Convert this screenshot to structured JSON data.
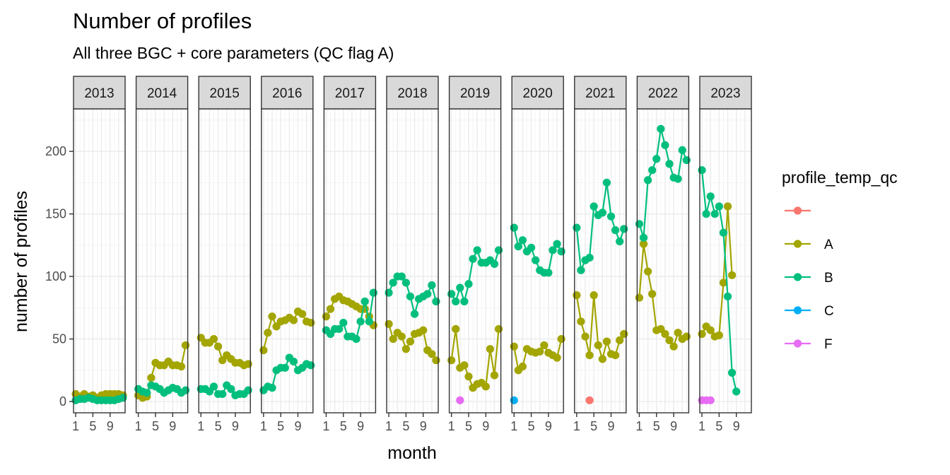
{
  "chart_data": {
    "type": "line",
    "title": "Number of profiles",
    "subtitle": "All three BGC + core parameters (QC flag A)",
    "xlabel": "month",
    "ylabel": "number of profiles",
    "facets": [
      "2013",
      "2014",
      "2015",
      "2016",
      "2017",
      "2018",
      "2019",
      "2020",
      "2021",
      "2022",
      "2023"
    ],
    "x_ticks": [
      1,
      5,
      9
    ],
    "xlim": [
      0.5,
      12.5
    ],
    "y_ticks": [
      0,
      50,
      100,
      150,
      200
    ],
    "ylim": [
      -9,
      234
    ],
    "legend": {
      "title": "profile_temp_qc",
      "position": "right",
      "entries": [
        {
          "label": "",
          "color": "#F8766D"
        },
        {
          "label": "A",
          "color": "#A3A500"
        },
        {
          "label": "B",
          "color": "#00BF7D"
        },
        {
          "label": "C",
          "color": "#00B0F6"
        },
        {
          "label": "F",
          "color": "#E76BF3"
        }
      ]
    },
    "series": [
      {
        "name": "",
        "color": "#F8766D",
        "points": {
          "2021": [
            [
              4,
              1
            ]
          ]
        }
      },
      {
        "name": "A",
        "color": "#A3A500",
        "points": {
          "2013": [
            [
              1,
              6
            ],
            [
              2,
              4
            ],
            [
              3,
              6
            ],
            [
              4,
              4
            ],
            [
              5,
              5
            ],
            [
              6,
              3
            ],
            [
              7,
              5
            ],
            [
              8,
              6
            ],
            [
              9,
              6
            ],
            [
              10,
              6
            ],
            [
              11,
              6
            ],
            [
              12,
              5
            ]
          ],
          "2014": [
            [
              1,
              5
            ],
            [
              2,
              3
            ],
            [
              3,
              4
            ],
            [
              4,
              19
            ],
            [
              5,
              31
            ],
            [
              6,
              29
            ],
            [
              7,
              29
            ],
            [
              8,
              32
            ],
            [
              9,
              29
            ],
            [
              10,
              29
            ],
            [
              11,
              28
            ],
            [
              12,
              45
            ]
          ],
          "2015": [
            [
              1,
              51
            ],
            [
              2,
              47
            ],
            [
              3,
              47
            ],
            [
              4,
              50
            ],
            [
              5,
              44
            ],
            [
              6,
              33
            ],
            [
              7,
              37
            ],
            [
              8,
              34
            ],
            [
              9,
              31
            ],
            [
              10,
              31
            ],
            [
              11,
              29
            ],
            [
              12,
              30
            ]
          ],
          "2016": [
            [
              1,
              41
            ],
            [
              2,
              55
            ],
            [
              3,
              68
            ],
            [
              4,
              60
            ],
            [
              5,
              64
            ],
            [
              6,
              65
            ],
            [
              7,
              67
            ],
            [
              8,
              65
            ],
            [
              9,
              72
            ],
            [
              10,
              70
            ],
            [
              11,
              64
            ],
            [
              12,
              63
            ]
          ],
          "2017": [
            [
              1,
              68
            ],
            [
              2,
              74
            ],
            [
              3,
              82
            ],
            [
              4,
              84
            ],
            [
              5,
              81
            ],
            [
              6,
              80
            ],
            [
              7,
              78
            ],
            [
              8,
              76
            ],
            [
              9,
              74
            ],
            [
              10,
              74
            ],
            [
              11,
              68
            ],
            [
              12,
              61
            ]
          ],
          "2018": [
            [
              1,
              62
            ],
            [
              2,
              50
            ],
            [
              3,
              55
            ],
            [
              4,
              52
            ],
            [
              5,
              42
            ],
            [
              6,
              48
            ],
            [
              7,
              54
            ],
            [
              8,
              55
            ],
            [
              9,
              57
            ],
            [
              10,
              41
            ],
            [
              11,
              38
            ],
            [
              12,
              33
            ]
          ],
          "2019": [
            [
              1,
              33
            ],
            [
              2,
              58
            ],
            [
              3,
              27
            ],
            [
              4,
              29
            ],
            [
              5,
              20
            ],
            [
              6,
              11
            ],
            [
              7,
              14
            ],
            [
              8,
              15
            ],
            [
              9,
              12
            ],
            [
              10,
              42
            ],
            [
              11,
              21
            ],
            [
              12,
              58
            ]
          ],
          "2020": [
            [
              1,
              44
            ],
            [
              2,
              25
            ],
            [
              3,
              28
            ],
            [
              4,
              42
            ],
            [
              5,
              40
            ],
            [
              6,
              39
            ],
            [
              7,
              40
            ],
            [
              8,
              45
            ],
            [
              9,
              39
            ],
            [
              10,
              37
            ],
            [
              11,
              35
            ],
            [
              12,
              50
            ]
          ],
          "2021": [
            [
              1,
              85
            ],
            [
              2,
              64
            ],
            [
              3,
              52
            ],
            [
              4,
              37
            ],
            [
              5,
              85
            ],
            [
              6,
              45
            ],
            [
              7,
              34
            ],
            [
              8,
              48
            ],
            [
              9,
              38
            ],
            [
              10,
              37
            ],
            [
              11,
              49
            ],
            [
              12,
              54
            ]
          ],
          "2022": [
            [
              1,
              83
            ],
            [
              2,
              126
            ],
            [
              3,
              104
            ],
            [
              4,
              86
            ],
            [
              5,
              57
            ],
            [
              6,
              58
            ],
            [
              7,
              54
            ],
            [
              8,
              49
            ],
            [
              9,
              44
            ],
            [
              10,
              55
            ],
            [
              11,
              50
            ],
            [
              12,
              52
            ]
          ],
          "2023": [
            [
              1,
              54
            ],
            [
              2,
              60
            ],
            [
              3,
              57
            ],
            [
              4,
              52
            ],
            [
              5,
              53
            ],
            [
              6,
              95
            ],
            [
              7,
              156
            ],
            [
              8,
              101
            ]
          ]
        }
      },
      {
        "name": "B",
        "color": "#00BF7D",
        "points": {
          "2013": [
            [
              1,
              1
            ],
            [
              2,
              2
            ],
            [
              3,
              2
            ],
            [
              4,
              3
            ],
            [
              5,
              2
            ],
            [
              6,
              1
            ],
            [
              7,
              1
            ],
            [
              8,
              1
            ],
            [
              9,
              1
            ],
            [
              10,
              1
            ],
            [
              11,
              2
            ],
            [
              12,
              3
            ]
          ],
          "2014": [
            [
              1,
              10
            ],
            [
              2,
              8
            ],
            [
              3,
              7
            ],
            [
              4,
              13
            ],
            [
              5,
              12
            ],
            [
              6,
              10
            ],
            [
              7,
              7
            ],
            [
              8,
              9
            ],
            [
              9,
              11
            ],
            [
              10,
              10
            ],
            [
              11,
              7
            ],
            [
              12,
              9
            ]
          ],
          "2015": [
            [
              1,
              10
            ],
            [
              2,
              10
            ],
            [
              3,
              8
            ],
            [
              4,
              12
            ],
            [
              5,
              6
            ],
            [
              6,
              6
            ],
            [
              7,
              13
            ],
            [
              8,
              10
            ],
            [
              9,
              5
            ],
            [
              10,
              6
            ],
            [
              11,
              6
            ],
            [
              12,
              9
            ]
          ],
          "2016": [
            [
              1,
              9
            ],
            [
              2,
              12
            ],
            [
              3,
              11
            ],
            [
              4,
              25
            ],
            [
              5,
              27
            ],
            [
              6,
              27
            ],
            [
              7,
              35
            ],
            [
              8,
              32
            ],
            [
              9,
              25
            ],
            [
              10,
              27
            ],
            [
              11,
              30
            ],
            [
              12,
              29
            ]
          ],
          "2017": [
            [
              1,
              57
            ],
            [
              2,
              54
            ],
            [
              3,
              58
            ],
            [
              4,
              58
            ],
            [
              5,
              63
            ],
            [
              6,
              52
            ],
            [
              7,
              52
            ],
            [
              8,
              50
            ],
            [
              9,
              64
            ],
            [
              10,
              80
            ],
            [
              11,
              64
            ],
            [
              12,
              87
            ]
          ],
          "2018": [
            [
              1,
              87
            ],
            [
              2,
              95
            ],
            [
              3,
              100
            ],
            [
              4,
              100
            ],
            [
              5,
              95
            ],
            [
              6,
              84
            ],
            [
              7,
              70
            ],
            [
              8,
              82
            ],
            [
              9,
              84
            ],
            [
              10,
              86
            ],
            [
              11,
              93
            ],
            [
              12,
              80
            ]
          ],
          "2019": [
            [
              1,
              86
            ],
            [
              2,
              80
            ],
            [
              3,
              91
            ],
            [
              4,
              80
            ],
            [
              5,
              94
            ],
            [
              6,
              114
            ],
            [
              7,
              121
            ],
            [
              8,
              111
            ],
            [
              9,
              111
            ],
            [
              10,
              113
            ],
            [
              11,
              110
            ],
            [
              12,
              121
            ]
          ],
          "2020": [
            [
              1,
              139
            ],
            [
              2,
              124
            ],
            [
              3,
              129
            ],
            [
              4,
              120
            ],
            [
              5,
              123
            ],
            [
              6,
              113
            ],
            [
              7,
              105
            ],
            [
              8,
              103
            ],
            [
              9,
              103
            ],
            [
              10,
              121
            ],
            [
              11,
              126
            ],
            [
              12,
              120
            ]
          ],
          "2021": [
            [
              1,
              139
            ],
            [
              2,
              105
            ],
            [
              3,
              113
            ],
            [
              4,
              115
            ],
            [
              5,
              156
            ],
            [
              6,
              149
            ],
            [
              7,
              151
            ],
            [
              8,
              175
            ],
            [
              9,
              148
            ],
            [
              10,
              137
            ],
            [
              11,
              128
            ],
            [
              12,
              138
            ]
          ],
          "2022": [
            [
              1,
              142
            ],
            [
              2,
              131
            ],
            [
              3,
              177
            ],
            [
              4,
              185
            ],
            [
              5,
              194
            ],
            [
              6,
              218
            ],
            [
              7,
              205
            ],
            [
              8,
              190
            ],
            [
              9,
              179
            ],
            [
              10,
              178
            ],
            [
              11,
              201
            ],
            [
              12,
              193
            ]
          ],
          "2023": [
            [
              1,
              185
            ],
            [
              2,
              150
            ],
            [
              3,
              164
            ],
            [
              4,
              150
            ],
            [
              5,
              156
            ],
            [
              6,
              135
            ],
            [
              7,
              84
            ],
            [
              8,
              23
            ],
            [
              9,
              8
            ]
          ]
        }
      },
      {
        "name": "C",
        "color": "#00B0F6",
        "points": {
          "2020": [
            [
              1,
              1
            ]
          ]
        }
      },
      {
        "name": "F",
        "color": "#E76BF3",
        "points": {
          "2019": [
            [
              3,
              1
            ]
          ],
          "2023": [
            [
              1,
              1
            ],
            [
              2,
              1
            ],
            [
              3,
              1
            ]
          ]
        }
      }
    ]
  }
}
